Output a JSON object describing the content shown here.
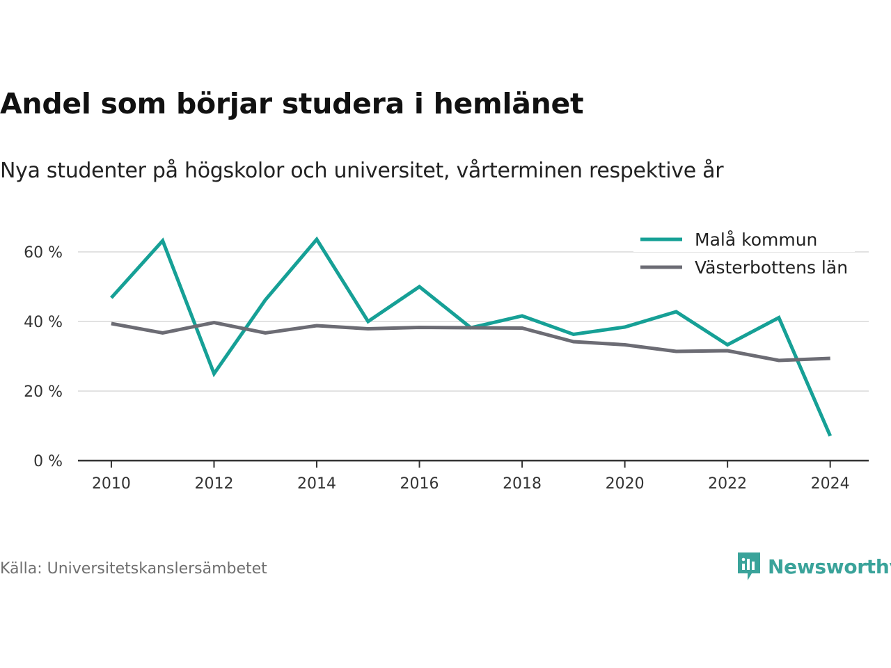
{
  "header": {
    "title": "Andel som börjar studera i hemlänet",
    "subtitle": "Nya studenter på högskolor och universitet, vårterminen respektive år"
  },
  "footer": {
    "source": "Källa: Universitetskanslersämbetet",
    "brand": "Newsworthy",
    "brand_icon": "newsworthy-logo-icon",
    "brand_color": "#3aa39a"
  },
  "chart_data": {
    "type": "line",
    "x": [
      2010,
      2011,
      2012,
      2013,
      2014,
      2015,
      2016,
      2017,
      2018,
      2019,
      2020,
      2021,
      2022,
      2023,
      2024
    ],
    "series": [
      {
        "name": "Malå kommun",
        "color": "#16a096",
        "values": [
          46.8,
          63.2,
          25.0,
          46.2,
          63.6,
          40.0,
          50.0,
          38.2,
          41.6,
          36.3,
          38.4,
          42.8,
          33.3,
          41.1,
          7.1
        ]
      },
      {
        "name": "Västerbottens län",
        "color": "#6c6c74",
        "values": [
          39.4,
          36.7,
          39.7,
          36.7,
          38.8,
          37.9,
          38.3,
          38.2,
          38.1,
          34.2,
          33.3,
          31.4,
          31.6,
          28.8,
          29.4
        ]
      }
    ],
    "ylim": [
      0,
      70
    ],
    "xlim": [
      2009.35,
      2024.75
    ],
    "yticks": [
      0,
      20,
      40,
      60
    ],
    "ytick_labels": [
      "0 %",
      "20 %",
      "40 %",
      "60 %"
    ],
    "xticks": [
      2010,
      2012,
      2014,
      2016,
      2018,
      2020,
      2022,
      2024
    ],
    "xtick_labels": [
      "2010",
      "2012",
      "2014",
      "2016",
      "2018",
      "2020",
      "2022",
      "2024"
    ],
    "grid": true,
    "legend_position": "top-right",
    "xlabel": "",
    "ylabel": ""
  }
}
